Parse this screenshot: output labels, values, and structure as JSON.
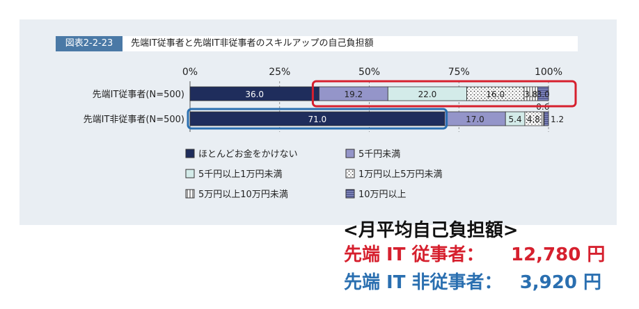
{
  "figure": {
    "tag": "図表2-2-23",
    "title": "先端IT従事者と先端IT非従事者のスキルアップの自己負担額"
  },
  "chart_data": {
    "type": "bar",
    "orientation": "horizontal",
    "stacked": true,
    "categories": [
      "先端IT従事者(N=500)",
      "先端IT非従事者(N=500)"
    ],
    "xticks": [
      "0%",
      "25%",
      "50%",
      "75%",
      "100%"
    ],
    "xlim": [
      0,
      100
    ],
    "series": [
      {
        "name": "ほとんどお金をかけない",
        "values": [
          36.0,
          71.0
        ],
        "labels": [
          "36.0",
          "71.0"
        ],
        "color": "#1f2d5c",
        "pattern": "solid-dark"
      },
      {
        "name": "5千円未満",
        "values": [
          19.2,
          17.0
        ],
        "labels": [
          "19.2",
          "17.0"
        ],
        "color": "#9495c9",
        "pattern": "solid-mid"
      },
      {
        "name": "5千円以上1万円未満",
        "values": [
          22.0,
          5.4
        ],
        "labels": [
          "22.0",
          "5.4"
        ],
        "color": "#d3ebe9",
        "pattern": "solid-light"
      },
      {
        "name": "1万円以上5万円未満",
        "values": [
          16.0,
          4.8
        ],
        "labels": [
          "16.0",
          "4.8"
        ],
        "color": "#ffffff",
        "pattern": "dots"
      },
      {
        "name": "5万円以上10万円未満",
        "values": [
          3.8,
          0.6
        ],
        "labels": [
          "3.8",
          "0.6"
        ],
        "color": "#ffffff",
        "pattern": "vlines"
      },
      {
        "name": "10万円以上",
        "values": [
          3.0,
          1.2
        ],
        "labels": [
          "3.0",
          "1.2"
        ],
        "color": "#8a90c4",
        "pattern": "hlines"
      }
    ],
    "legend_position": "bottom",
    "highlight_colors": {
      "it": "#d6202e",
      "non_it": "#2a6fb0"
    }
  },
  "average": {
    "title": "<月平均自己負担額>",
    "rows": [
      {
        "label": "先端 IT 従事者：",
        "value": "12,780 円",
        "color": "#d6202e"
      },
      {
        "label": "先端 IT 非従事者：",
        "value": "3,920 円",
        "color": "#2a6fb0"
      }
    ]
  }
}
